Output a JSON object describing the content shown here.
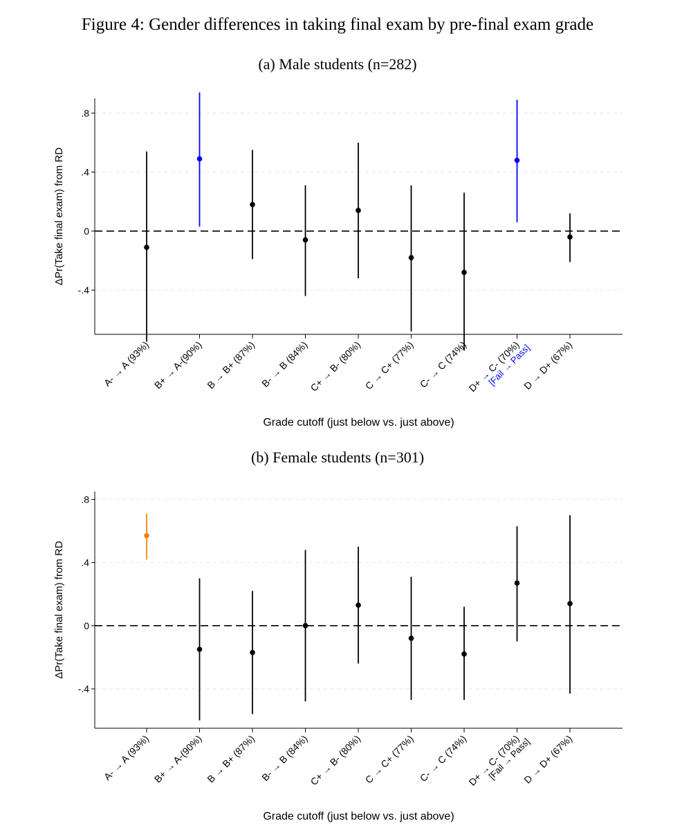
{
  "figure_title": "Figure 4: Gender differences in taking final exam by pre-final exam grade",
  "chart_data": [
    {
      "type": "scatter",
      "subtitle": "(a) Male students (n=282)",
      "ylabel": "ΔPr(Take final exam) from RD",
      "xlabel": "Grade cutoff (just below vs. just above)",
      "ylim": [
        -0.7,
        0.9
      ],
      "yticks": [
        0.8,
        0.4,
        0,
        -0.4
      ],
      "ytick_labels": [
        ".8",
        ".4",
        "0",
        "-.4"
      ],
      "reference_line": 0,
      "categories": [
        "A- → A (93%)",
        "B+ → A-(90%)",
        "B → B+ (87%)",
        "B- → B (84%)",
        "C+ → B- (80%)",
        "C → C+ (77%)",
        "C- → C (74%)",
        "D+ → C- (70%)",
        "D → D+ (67%)"
      ],
      "category_notes": [
        "",
        "",
        "",
        "",
        "",
        "",
        "",
        "[Fail → Pass]",
        ""
      ],
      "estimates": [
        -0.11,
        0.49,
        0.18,
        -0.06,
        0.14,
        -0.18,
        -0.28,
        0.48,
        -0.04
      ],
      "ci_low": [
        -0.75,
        0.03,
        -0.19,
        -0.44,
        -0.32,
        -0.68,
        -0.81,
        0.06,
        -0.21
      ],
      "ci_high": [
        0.54,
        0.94,
        0.55,
        0.31,
        0.6,
        0.31,
        0.26,
        0.89,
        0.12
      ],
      "point_colors": [
        "#000000",
        "#0000ff",
        "#000000",
        "#000000",
        "#000000",
        "#000000",
        "#000000",
        "#0000ff",
        "#000000"
      ],
      "note_color": "#0000ff"
    },
    {
      "type": "scatter",
      "subtitle": "(b) Female students (n=301)",
      "ylabel": "ΔPr(Take final exam) from RD",
      "xlabel": "Grade cutoff (just below vs. just above)",
      "ylim": [
        -0.65,
        0.85
      ],
      "yticks": [
        0.8,
        0.4,
        0,
        -0.4
      ],
      "ytick_labels": [
        ".8",
        ".4",
        "0",
        "-.4"
      ],
      "reference_line": 0,
      "categories": [
        "A- → A (93%)",
        "B+ → A-(90%)",
        "B → B+ (87%)",
        "B- → B (84%)",
        "C+ → B- (80%)",
        "C → C+ (77%)",
        "C- → C (74%)",
        "D+ → C- (70%)",
        "D → D+ (67%)"
      ],
      "category_notes": [
        "",
        "",
        "",
        "",
        "",
        "",
        "",
        "[Fail → Pass]",
        ""
      ],
      "estimates": [
        0.57,
        -0.15,
        -0.17,
        0.0,
        0.13,
        -0.08,
        -0.18,
        0.27,
        0.14
      ],
      "ci_low": [
        0.42,
        -0.6,
        -0.56,
        -0.48,
        -0.24,
        -0.47,
        -0.47,
        -0.1,
        -0.43
      ],
      "ci_high": [
        0.71,
        0.3,
        0.22,
        0.48,
        0.5,
        0.31,
        0.12,
        0.63,
        0.7
      ],
      "point_colors": [
        "#ff8000",
        "#000000",
        "#000000",
        "#000000",
        "#000000",
        "#000000",
        "#000000",
        "#000000",
        "#000000"
      ],
      "note_color": "#000000"
    }
  ]
}
